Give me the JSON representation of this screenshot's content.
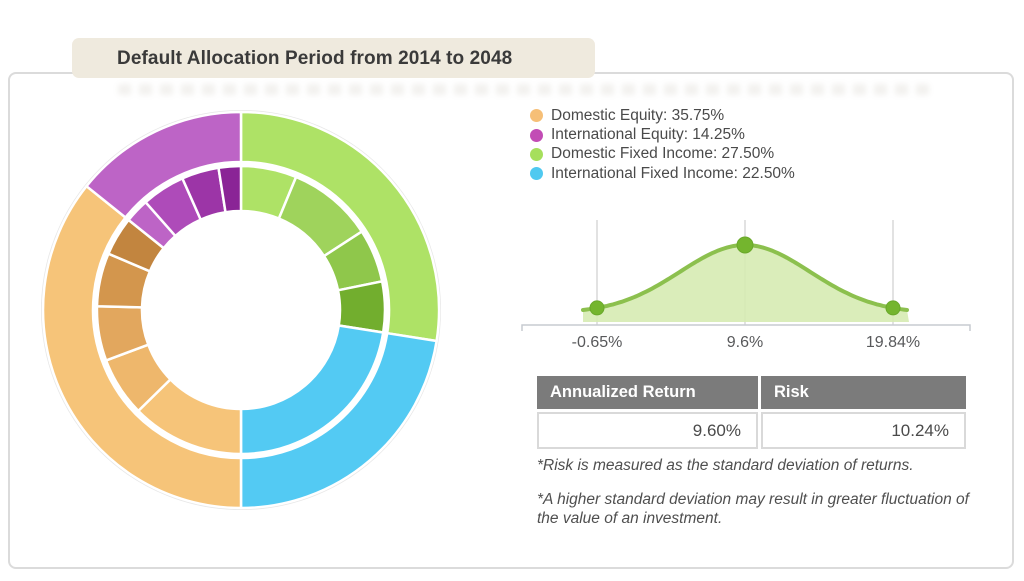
{
  "title_banner": {
    "text": "Default Allocation Period from 2014 to 2048"
  },
  "legend": {
    "items": [
      {
        "text": "Domestic Equity: 35.75%",
        "color": "#F6BF77"
      },
      {
        "text": "International Equity: 14.25%",
        "color": "#C24CB5"
      },
      {
        "text": "Domestic Fixed Income: 27.50%",
        "color": "#A6DF5C"
      },
      {
        "text": "International Fixed Income: 22.50%",
        "color": "#4FC9F0"
      }
    ]
  },
  "distribution": {
    "tick_labels": [
      "-0.65%",
      "9.6%",
      "19.84%"
    ]
  },
  "table": {
    "headers": [
      "Annualized Return",
      "Risk"
    ],
    "values": [
      "9.60%",
      "10.24%"
    ]
  },
  "footnotes": {
    "risk": "*Risk is measured as the standard deviation of returns.",
    "deviation": "*A higher standard deviation may result in greater fluctuation of the value of an investment."
  },
  "chart_data": [
    {
      "type": "pie",
      "subtype": "donut-sunburst",
      "title": "Default Allocation Period from 2014 to 2048",
      "legend_position": "right",
      "slices": [
        {
          "label": "Domestic Fixed Income",
          "value": 27.5,
          "color": "#AEE266",
          "start_deg": 0,
          "end_deg": 99,
          "children": [
            {
              "start_deg": 0,
              "end_deg": 22.5,
              "color": "#AEE266"
            },
            {
              "start_deg": 22.5,
              "end_deg": 57,
              "color": "#9FD35C"
            },
            {
              "start_deg": 57,
              "end_deg": 78.5,
              "color": "#8FC74B"
            },
            {
              "start_deg": 78.5,
              "end_deg": 99,
              "color": "#72AE2E"
            }
          ]
        },
        {
          "label": "International Fixed Income",
          "value": 22.5,
          "color": "#53CAF3",
          "start_deg": 99,
          "end_deg": 180,
          "children": [
            {
              "start_deg": 99,
              "end_deg": 180,
              "color": "#53CAF3"
            }
          ]
        },
        {
          "label": "Domestic Equity",
          "value": 35.75,
          "color": "#F6C479",
          "start_deg": 180,
          "end_deg": 308.7,
          "children": [
            {
              "start_deg": 180,
              "end_deg": 225.5,
              "color": "#F6C479"
            },
            {
              "start_deg": 225.5,
              "end_deg": 249.5,
              "color": "#EEB76C"
            },
            {
              "start_deg": 249.5,
              "end_deg": 271.5,
              "color": "#E2A75E"
            },
            {
              "start_deg": 271.5,
              "end_deg": 293,
              "color": "#D3964D"
            },
            {
              "start_deg": 293,
              "end_deg": 308.7,
              "color": "#C2853F"
            }
          ]
        },
        {
          "label": "International Equity",
          "value": 14.25,
          "color": "#BD64C6",
          "start_deg": 308.7,
          "end_deg": 360,
          "children": [
            {
              "start_deg": 308.7,
              "end_deg": 318.5,
              "color": "#BD64C6"
            },
            {
              "start_deg": 318.5,
              "end_deg": 336,
              "color": "#AE4BB9"
            },
            {
              "start_deg": 336,
              "end_deg": 351,
              "color": "#9C35A7"
            },
            {
              "start_deg": 351,
              "end_deg": 360,
              "color": "#8A2496"
            }
          ]
        }
      ]
    },
    {
      "type": "area",
      "subtype": "normal-distribution-curve",
      "x_tick_labels": [
        "-0.65%",
        "9.6%",
        "19.84%"
      ],
      "x_tick_values": [
        -0.65,
        9.6,
        19.84
      ],
      "mean_pct": 9.6,
      "std_dev_pct": 10.24,
      "marked_points_pct": [
        -0.65,
        9.6,
        19.84
      ],
      "curve_color": "#8CC04E",
      "fill_color": "#D6EBB2",
      "point_color": "#74B52E",
      "gridline_color": "#D8D8D8",
      "axis_color": "#C7CBD1",
      "grid": true,
      "legend_position": "none"
    },
    {
      "type": "table",
      "headers": [
        "Annualized Return",
        "Risk"
      ],
      "rows": [
        [
          "9.60%",
          "10.24%"
        ]
      ],
      "header_bg": "#7B7B7B"
    }
  ]
}
